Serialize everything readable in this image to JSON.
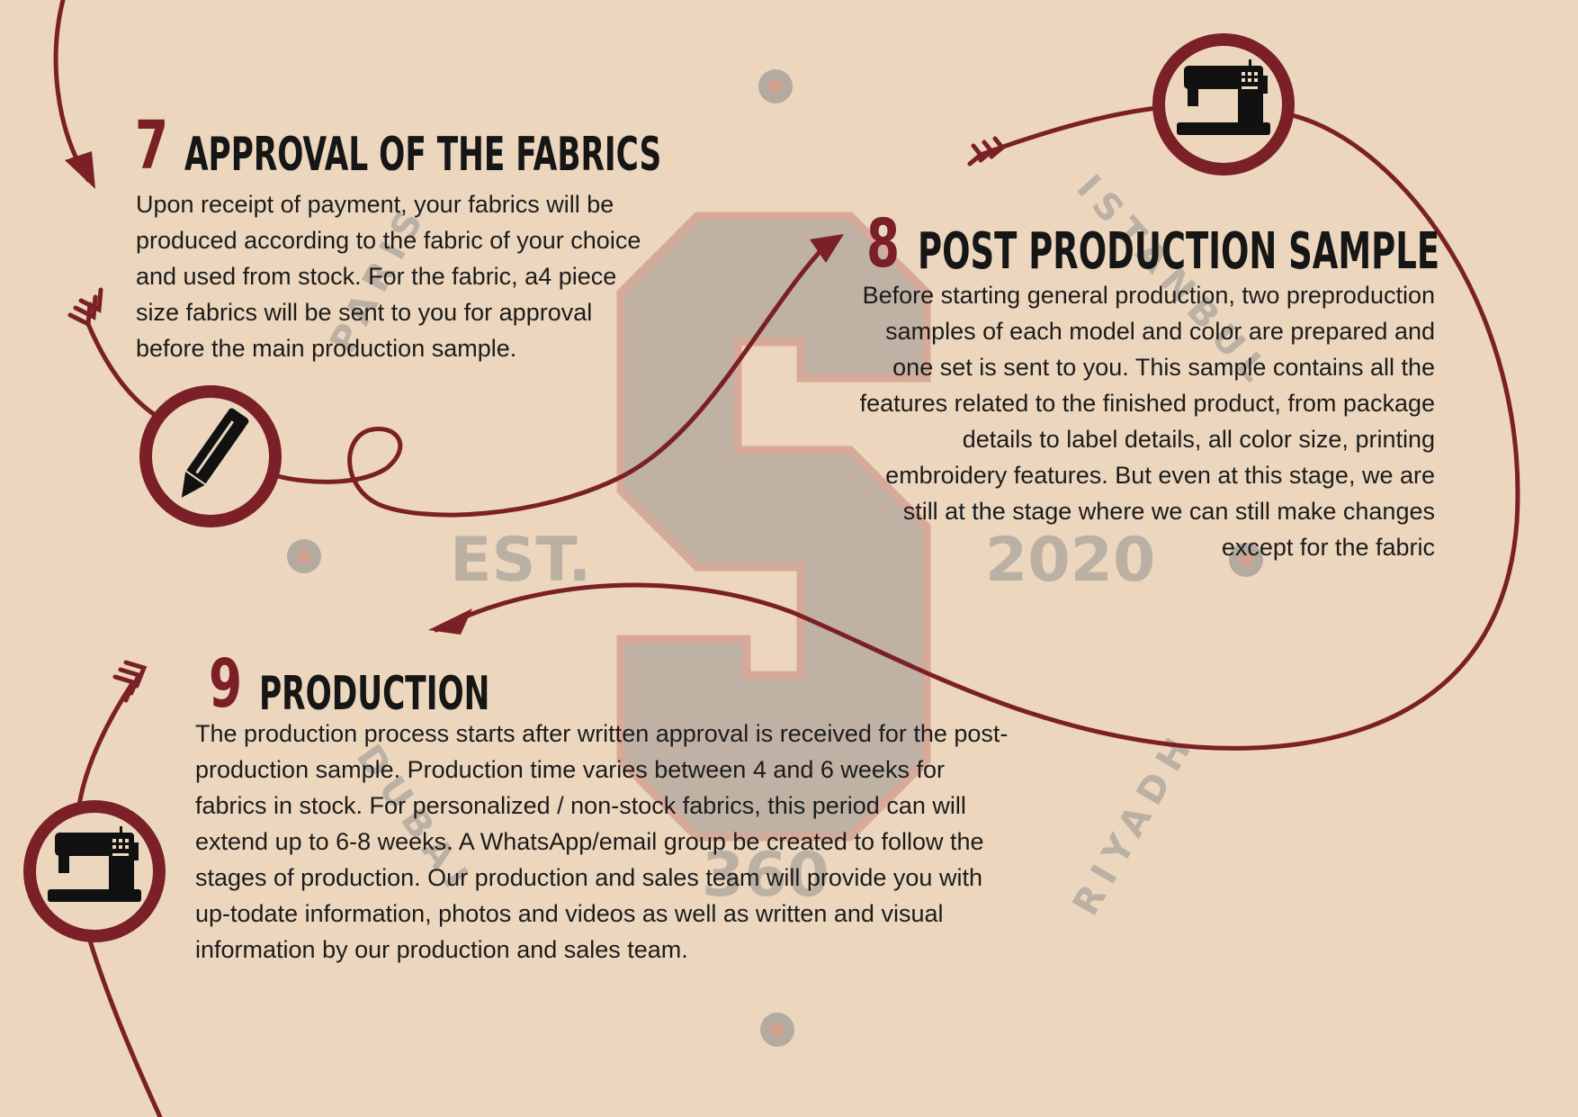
{
  "colors": {
    "background": "#ecd6bd",
    "accent": "#7a2026",
    "watermark": "#b3aaa0",
    "text": "#1c1c1c"
  },
  "watermark": {
    "letter": "S",
    "est_label": "EST.",
    "year": "2020",
    "number": "360",
    "city_paris": "PARIS",
    "city_istanbul": "ISTANBUL",
    "city_dubai": "DUBAI",
    "city_riyadh": "RIYADH"
  },
  "steps": [
    {
      "number": "7",
      "title": "Approval of the fabrics",
      "body": "Upon receipt of payment, your fabrics will be produced according to the fabric of your choice and used from stock. For the fabric, a4 piece size fabrics will be sent to you for approval before the main production sample.",
      "icon": "pencil-icon"
    },
    {
      "number": "8",
      "title": "Post production sample",
      "body": "Before starting general production, two preproduction samples of each model and color are prepared and one set is sent to you. This sample contains all the features related to the finished product, from package details to label details, all color size, printing embroidery features. But even at this stage, we are still at the stage where we can still make changes except for the fabric",
      "icon": "sewing-machine-icon"
    },
    {
      "number": "9",
      "title": "Production",
      "body": "The production process starts after written approval is received for the post-production sample. Production time varies between 4 and 6 weeks for fabrics in stock. For personalized / non-stock fabrics, this period can will extend up to 6-8 weeks. A WhatsApp/email group be created to follow the stages of production. Our production and sales team will provide you with up-todate information, photos and videos as well as written and visual information by our production and sales team.",
      "icon": "sewing-machine-icon"
    }
  ]
}
